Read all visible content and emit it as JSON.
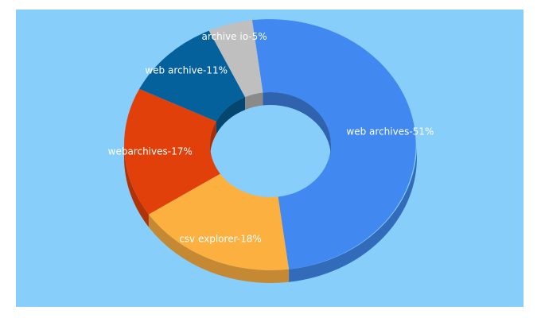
{
  "chart_data": {
    "type": "pie",
    "variant": "3d-donut",
    "background_color": "#87cefa",
    "legend": "none",
    "slices": [
      {
        "label": "web archives-51%",
        "value": 51,
        "color": "#4189f0"
      },
      {
        "label": "csv explorer-18%",
        "value": 18,
        "color": "#fbb040"
      },
      {
        "label": "webarchives-17%",
        "value": 17,
        "color": "#e2400b"
      },
      {
        "label": "web archive-11%",
        "value": 11,
        "color": "#05619b"
      },
      {
        "label": "archive io-5%",
        "value": 5,
        "color": "#bfbfbf"
      }
    ]
  }
}
